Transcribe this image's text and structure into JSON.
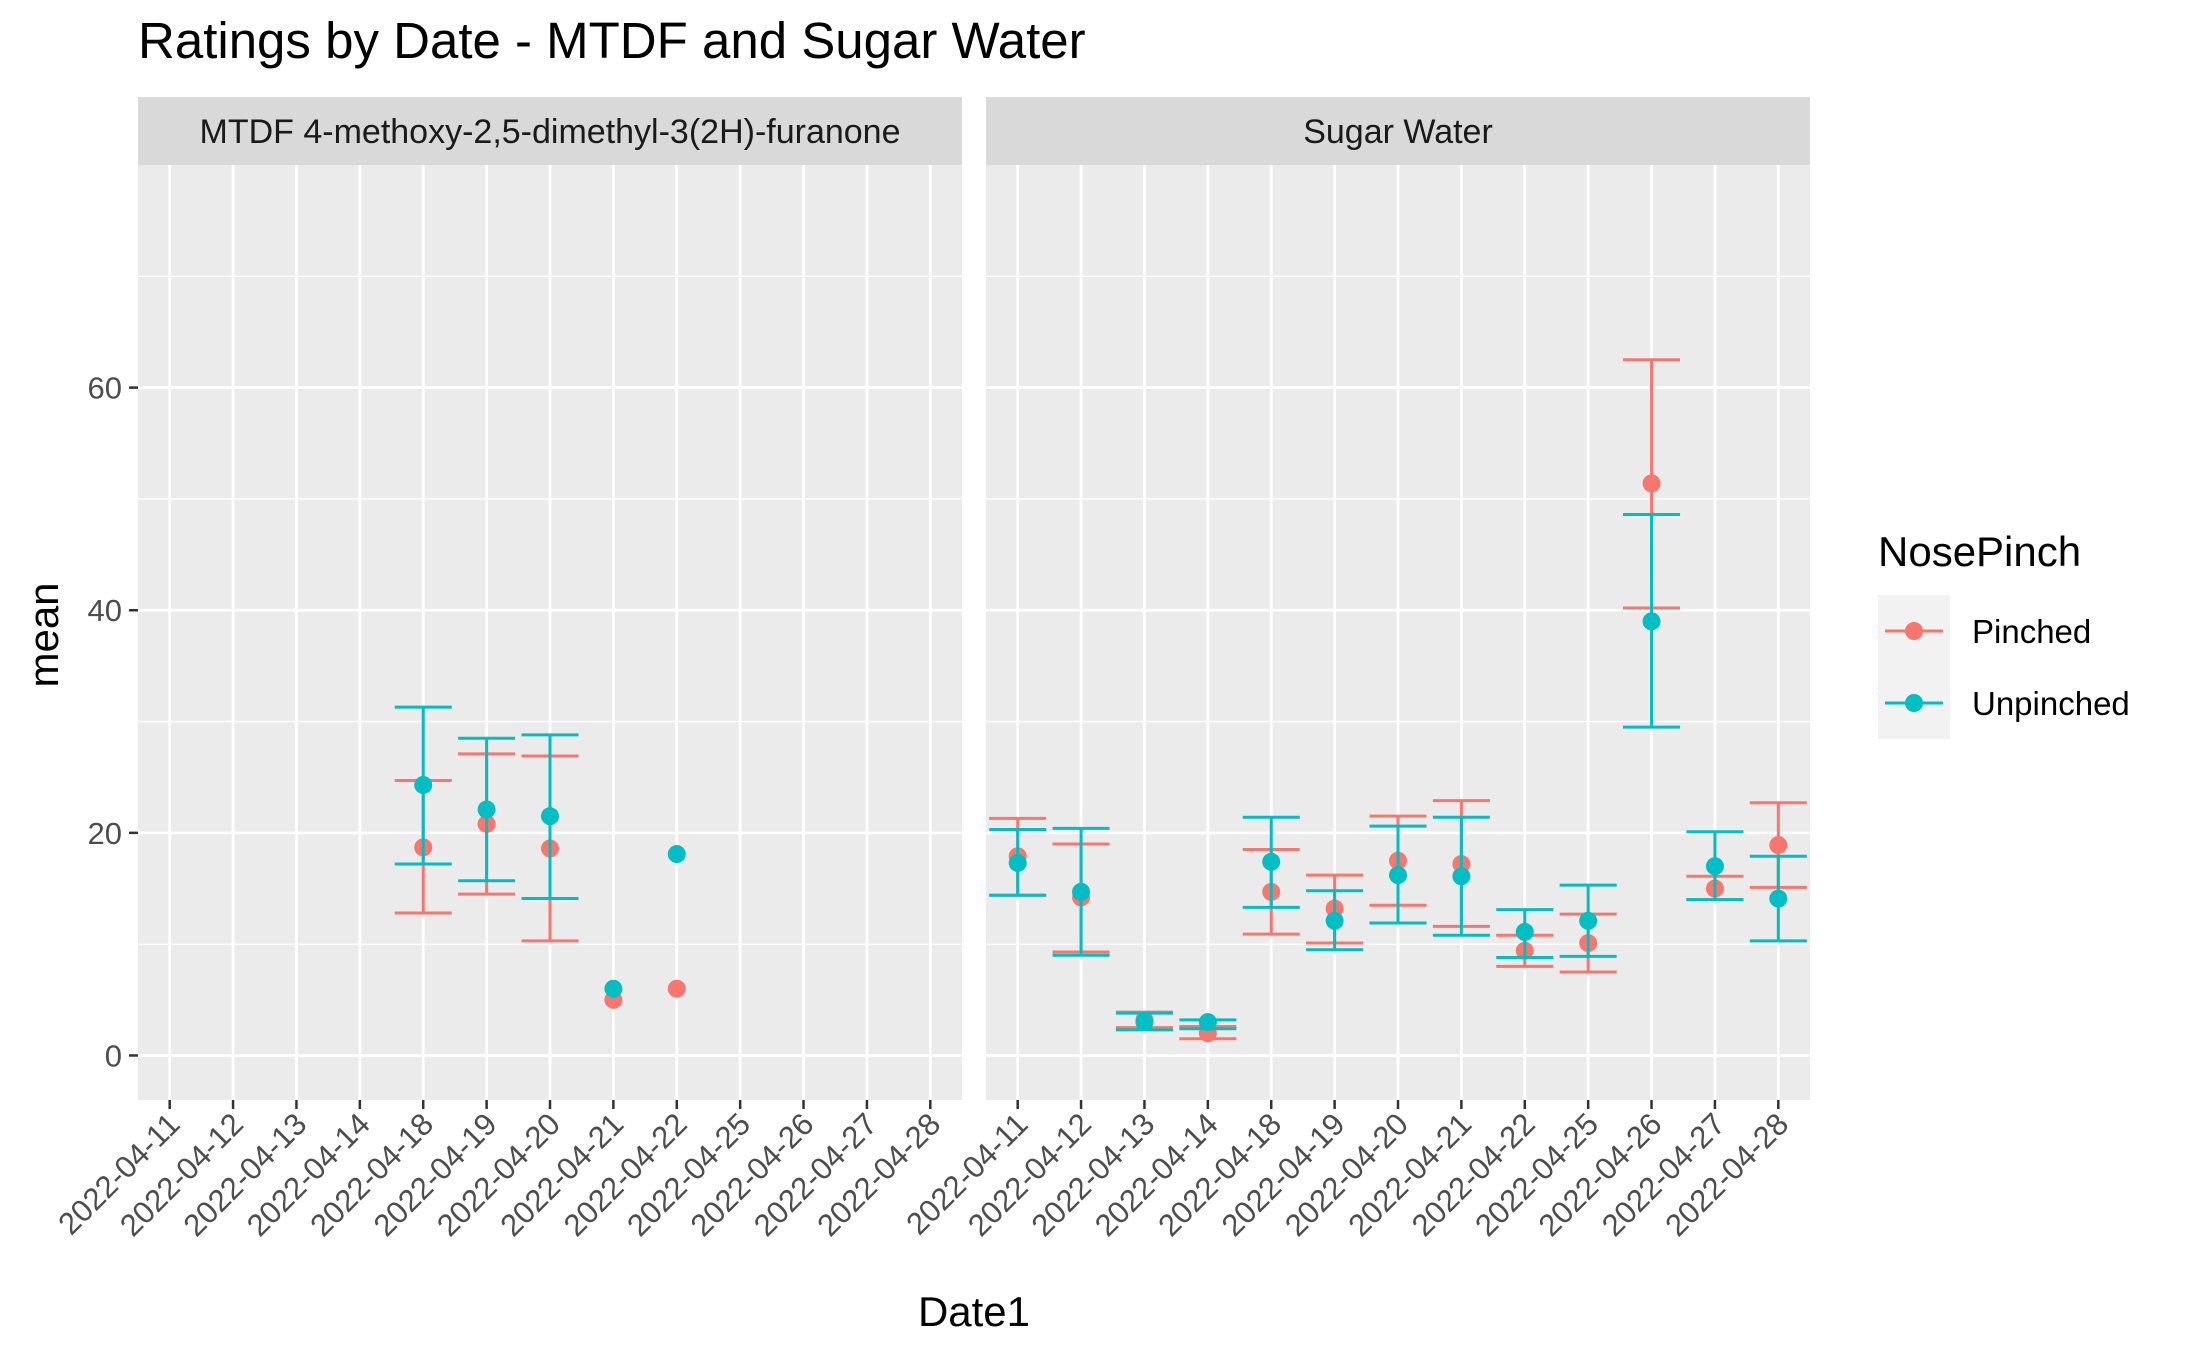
{
  "chart_data": {
    "type": "scatter",
    "title": "Ratings by Date - MTDF and Sugar Water",
    "xlabel": "Date1",
    "ylabel": "mean",
    "ylim": [
      -4,
      80
    ],
    "yticks": [
      0,
      20,
      40,
      60
    ],
    "grid": true,
    "categories": [
      "2022-04-11",
      "2022-04-12",
      "2022-04-13",
      "2022-04-14",
      "2022-04-18",
      "2022-04-19",
      "2022-04-20",
      "2022-04-21",
      "2022-04-22",
      "2022-04-25",
      "2022-04-26",
      "2022-04-27",
      "2022-04-28"
    ],
    "legend": {
      "title": "NosePinch",
      "position": "right",
      "entries": [
        {
          "name": "Pinched",
          "color": "#F8766D"
        },
        {
          "name": "Unpinched",
          "color": "#00BFC4"
        }
      ]
    },
    "panels": [
      {
        "strip": "MTDF 4-methoxy-2,5-dimethyl-3(2H)-furanone",
        "series": [
          {
            "name": "Pinched",
            "points": [
              {
                "x": "2022-04-18",
                "y": 18.7,
                "lo": 12.8,
                "hi": 24.7
              },
              {
                "x": "2022-04-19",
                "y": 20.8,
                "lo": 14.5,
                "hi": 27.1
              },
              {
                "x": "2022-04-20",
                "y": 18.6,
                "lo": 10.3,
                "hi": 26.9
              },
              {
                "x": "2022-04-21",
                "y": 5.0
              },
              {
                "x": "2022-04-22",
                "y": 6.0
              }
            ]
          },
          {
            "name": "Unpinched",
            "points": [
              {
                "x": "2022-04-18",
                "y": 24.3,
                "lo": 17.2,
                "hi": 31.3
              },
              {
                "x": "2022-04-19",
                "y": 22.1,
                "lo": 15.7,
                "hi": 28.5
              },
              {
                "x": "2022-04-20",
                "y": 21.5,
                "lo": 14.1,
                "hi": 28.8
              },
              {
                "x": "2022-04-21",
                "y": 6.0
              },
              {
                "x": "2022-04-22",
                "y": 18.1
              }
            ]
          }
        ]
      },
      {
        "strip": "Sugar Water",
        "series": [
          {
            "name": "Pinched",
            "points": [
              {
                "x": "2022-04-11",
                "y": 17.9,
                "lo": 14.4,
                "hi": 21.3
              },
              {
                "x": "2022-04-12",
                "y": 14.2,
                "lo": 9.3,
                "hi": 19.0
              },
              {
                "x": "2022-04-13",
                "y": 3.2,
                "lo": 2.5,
                "hi": 3.9
              },
              {
                "x": "2022-04-14",
                "y": 2.0,
                "lo": 1.5,
                "hi": 2.6
              },
              {
                "x": "2022-04-18",
                "y": 14.7,
                "lo": 10.9,
                "hi": 18.5
              },
              {
                "x": "2022-04-19",
                "y": 13.2,
                "lo": 10.1,
                "hi": 16.2
              },
              {
                "x": "2022-04-20",
                "y": 17.5,
                "lo": 13.5,
                "hi": 21.5
              },
              {
                "x": "2022-04-21",
                "y": 17.2,
                "lo": 11.6,
                "hi": 22.9
              },
              {
                "x": "2022-04-22",
                "y": 9.4,
                "lo": 8.0,
                "hi": 10.8
              },
              {
                "x": "2022-04-25",
                "y": 10.1,
                "lo": 7.5,
                "hi": 12.7
              },
              {
                "x": "2022-04-26",
                "y": 51.4,
                "lo": 40.2,
                "hi": 62.5
              },
              {
                "x": "2022-04-27",
                "y": 15.0,
                "lo": 14.0,
                "hi": 16.1
              },
              {
                "x": "2022-04-28",
                "y": 18.9,
                "lo": 15.1,
                "hi": 22.7
              }
            ]
          },
          {
            "name": "Unpinched",
            "points": [
              {
                "x": "2022-04-11",
                "y": 17.3,
                "lo": 14.4,
                "hi": 20.3
              },
              {
                "x": "2022-04-12",
                "y": 14.7,
                "lo": 9.0,
                "hi": 20.4
              },
              {
                "x": "2022-04-13",
                "y": 3.0,
                "lo": 2.3,
                "hi": 3.8
              },
              {
                "x": "2022-04-14",
                "y": 3.0,
                "lo": 2.4,
                "hi": 3.2
              },
              {
                "x": "2022-04-18",
                "y": 17.4,
                "lo": 13.3,
                "hi": 21.4
              },
              {
                "x": "2022-04-19",
                "y": 12.1,
                "lo": 9.5,
                "hi": 14.8
              },
              {
                "x": "2022-04-20",
                "y": 16.2,
                "lo": 11.9,
                "hi": 20.6
              },
              {
                "x": "2022-04-21",
                "y": 16.1,
                "lo": 10.8,
                "hi": 21.4
              },
              {
                "x": "2022-04-22",
                "y": 11.1,
                "lo": 8.8,
                "hi": 13.1
              },
              {
                "x": "2022-04-25",
                "y": 12.1,
                "lo": 8.9,
                "hi": 15.3
              },
              {
                "x": "2022-04-26",
                "y": 39.0,
                "lo": 29.5,
                "hi": 48.6
              },
              {
                "x": "2022-04-27",
                "y": 17.0,
                "lo": 14.0,
                "hi": 20.1
              },
              {
                "x": "2022-04-28",
                "y": 14.1,
                "lo": 10.3,
                "hi": 17.9
              }
            ]
          }
        ]
      }
    ]
  }
}
